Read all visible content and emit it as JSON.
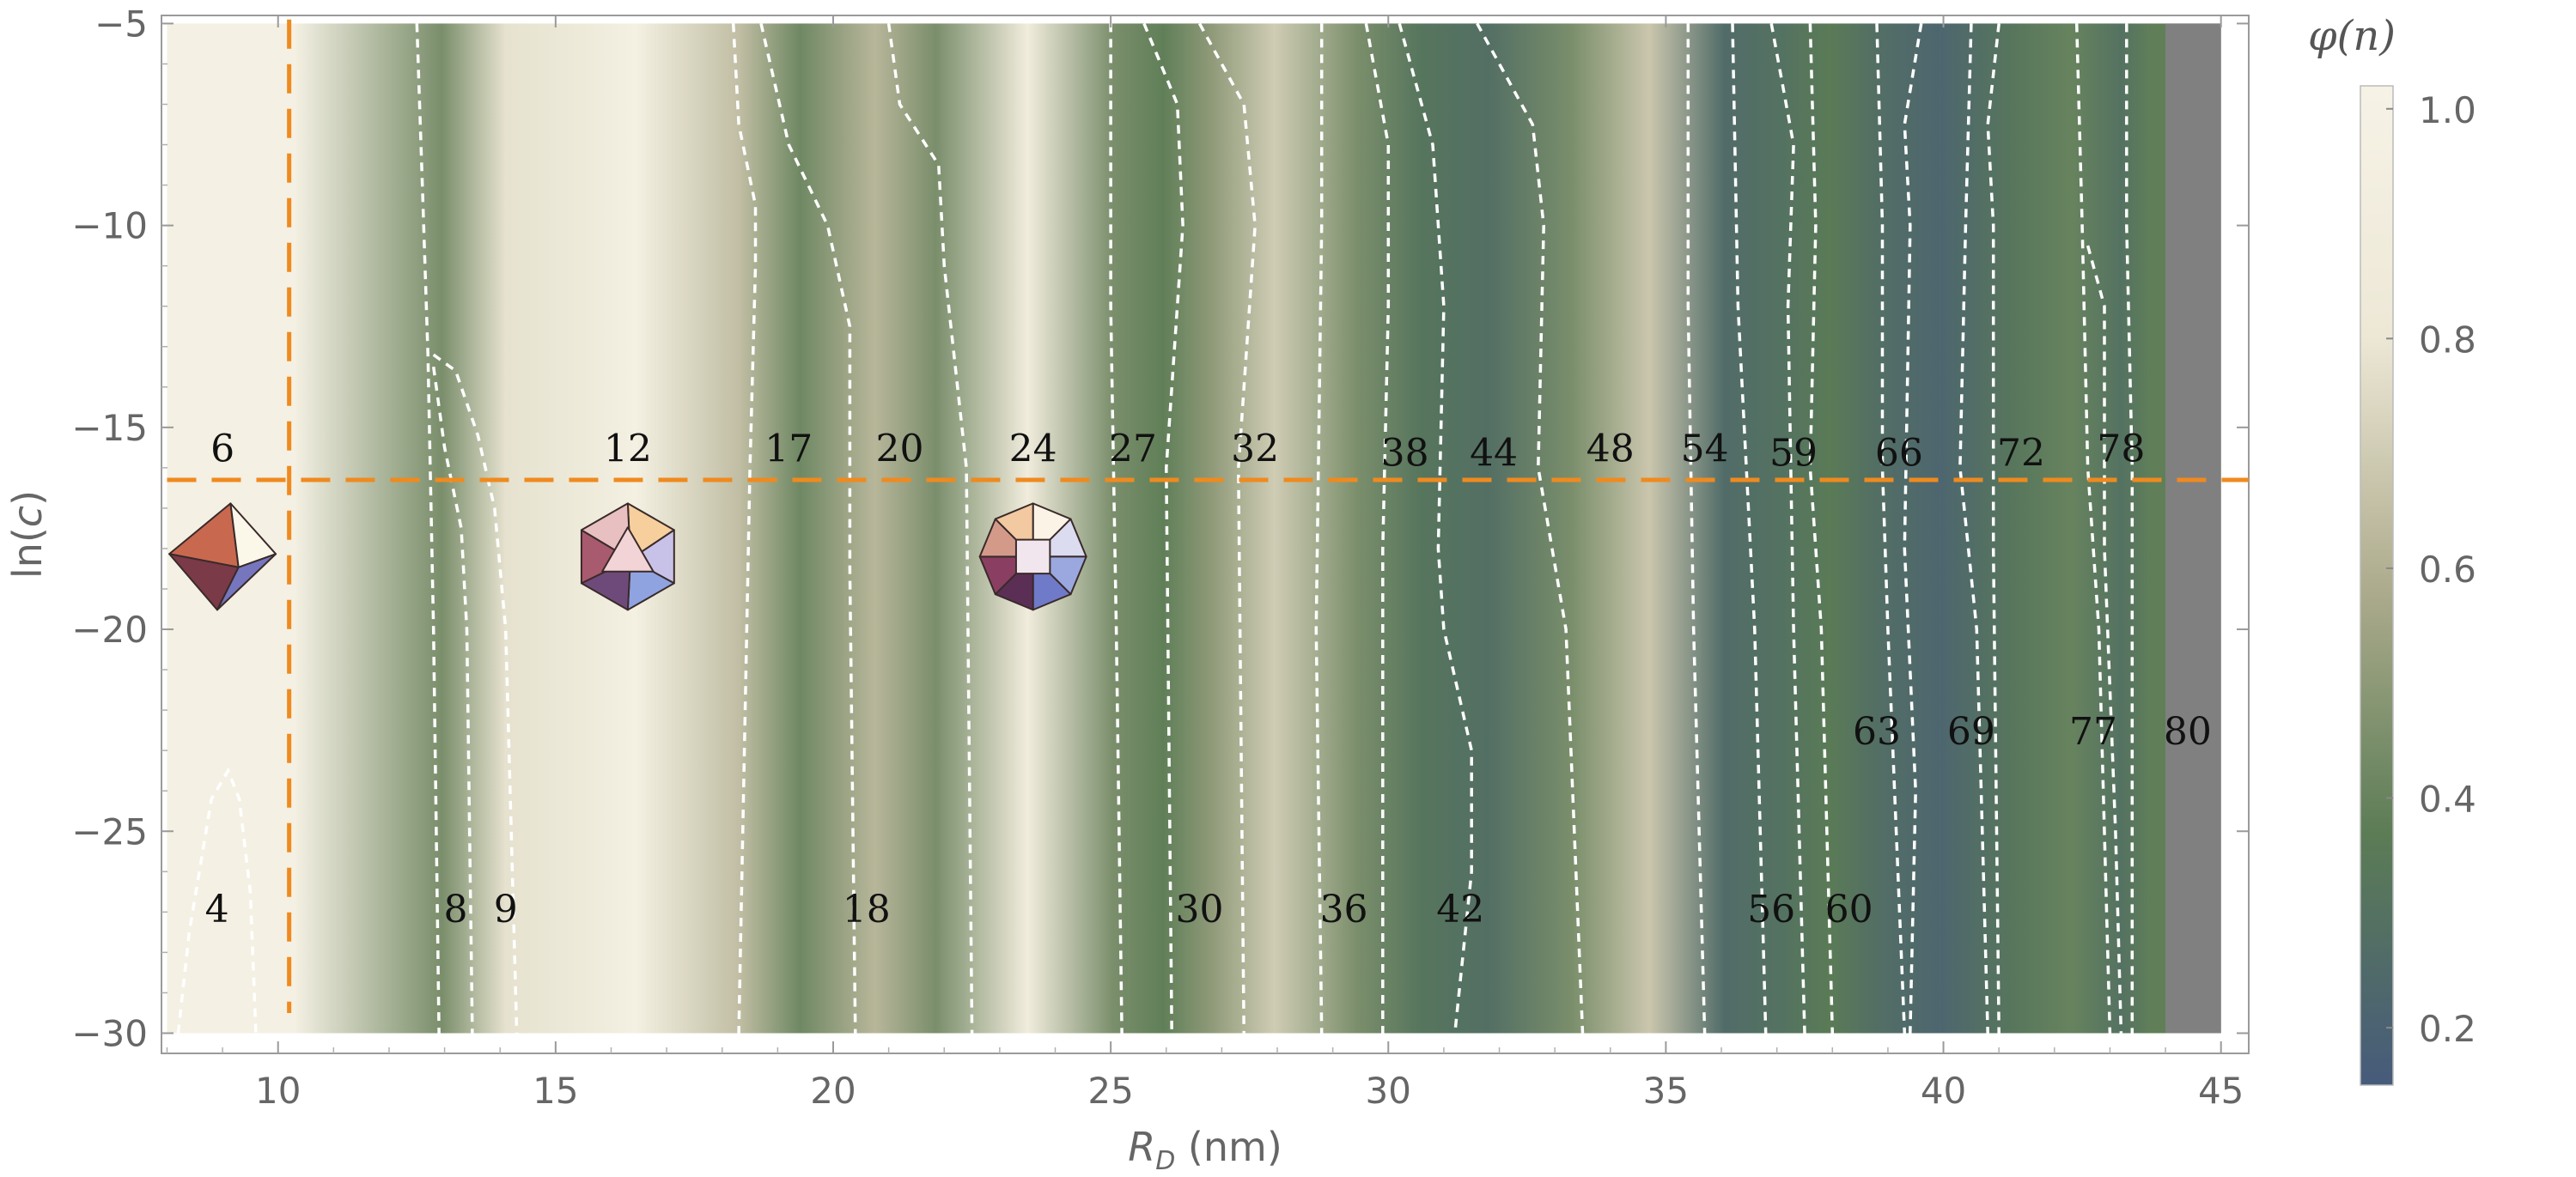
{
  "chart_data": {
    "type": "heatmap",
    "title": "",
    "xlabel": "R_D (nm)",
    "ylabel": "ln(c)",
    "xlim": [
      7.9,
      45.5
    ],
    "ylim": [
      -30.5,
      -4.8
    ],
    "x_ticks": [
      10,
      15,
      20,
      25,
      30,
      35,
      40,
      45
    ],
    "y_ticks": [
      -5,
      -10,
      -15,
      -20,
      -25,
      -30
    ],
    "colorbar": {
      "title": "φ(n)",
      "range": [
        0.15,
        1.02
      ],
      "ticks": [
        1.0,
        0.8,
        0.6,
        0.4,
        0.2
      ],
      "colors": [
        "#465b7b",
        "#5b7c55",
        "#aeac8e",
        "#ede8d6",
        "#f6f2e6"
      ]
    },
    "colors": {
      "reference_lines": "#ef8a1f",
      "contours": "#ffffff",
      "no_data": "#808080"
    },
    "reference_lines": {
      "vertical_x": 10.2,
      "horizontal_y": -16.3
    },
    "bands": [
      {
        "x0": 8.0,
        "x1": 12.6,
        "phi": 0.98
      },
      {
        "x0": 12.6,
        "x1": 13.3,
        "phi": 0.45
      },
      {
        "x0": 13.3,
        "x1": 14.9,
        "phi": 0.78
      },
      {
        "x0": 14.9,
        "x1": 18.0,
        "phi": 0.97
      },
      {
        "x0": 18.0,
        "x1": 18.6,
        "phi": 0.65
      },
      {
        "x0": 18.6,
        "x1": 20.2,
        "phi": 0.42
      },
      {
        "x0": 20.2,
        "x1": 21.3,
        "phi": 0.62
      },
      {
        "x0": 21.3,
        "x1": 22.4,
        "phi": 0.45
      },
      {
        "x0": 22.4,
        "x1": 24.6,
        "phi": 0.9
      },
      {
        "x0": 24.6,
        "x1": 25.5,
        "phi": 0.45
      },
      {
        "x0": 25.5,
        "x1": 26.4,
        "phi": 0.38
      },
      {
        "x0": 26.4,
        "x1": 27.2,
        "phi": 0.5
      },
      {
        "x0": 27.2,
        "x1": 28.7,
        "phi": 0.7
      },
      {
        "x0": 28.7,
        "x1": 30.2,
        "phi": 0.45
      },
      {
        "x0": 30.2,
        "x1": 31.0,
        "phi": 0.32
      },
      {
        "x0": 31.0,
        "x1": 32.6,
        "phi": 0.28
      },
      {
        "x0": 32.6,
        "x1": 34.0,
        "phi": 0.45
      },
      {
        "x0": 34.0,
        "x1": 35.4,
        "phi": 0.68
      },
      {
        "x0": 35.4,
        "x1": 36.7,
        "phi": 0.26
      },
      {
        "x0": 36.7,
        "x1": 37.5,
        "phi": 0.3
      },
      {
        "x0": 37.5,
        "x1": 38.4,
        "phi": 0.36
      },
      {
        "x0": 38.4,
        "x1": 39.1,
        "phi": 0.28
      },
      {
        "x0": 39.1,
        "x1": 40.8,
        "phi": 0.22
      },
      {
        "x0": 40.8,
        "x1": 41.7,
        "phi": 0.33
      },
      {
        "x0": 41.7,
        "x1": 42.9,
        "phi": 0.4
      },
      {
        "x0": 42.9,
        "x1": 43.5,
        "phi": 0.3
      },
      {
        "x0": 43.5,
        "x1": 44.0,
        "phi": 0.38
      },
      {
        "x0": 44.0,
        "x1": 45.0,
        "phi": null
      }
    ],
    "contours": [
      {
        "points": [
          [
            8.2,
            -30
          ],
          [
            8.4,
            -27.5
          ],
          [
            8.8,
            -24.2
          ],
          [
            9.1,
            -23.5
          ],
          [
            9.3,
            -24.2
          ],
          [
            9.5,
            -26.5
          ],
          [
            9.6,
            -30
          ]
        ]
      },
      {
        "points": [
          [
            12.5,
            -5.0
          ],
          [
            12.6,
            -9.0
          ],
          [
            12.7,
            -13.2
          ],
          [
            12.8,
            -20.0
          ],
          [
            12.9,
            -30.0
          ]
        ]
      },
      {
        "points": [
          [
            12.8,
            -13.2
          ],
          [
            13.2,
            -13.6
          ],
          [
            13.6,
            -15.2
          ],
          [
            13.9,
            -17.0
          ],
          [
            14.1,
            -20.0
          ],
          [
            14.2,
            -25.0
          ],
          [
            14.3,
            -30.0
          ]
        ]
      },
      {
        "points": [
          [
            12.8,
            -13.5
          ],
          [
            13.0,
            -15.5
          ],
          [
            13.3,
            -17.5
          ],
          [
            13.4,
            -20.0
          ],
          [
            13.5,
            -30.0
          ]
        ]
      },
      {
        "points": [
          [
            18.2,
            -5.0
          ],
          [
            18.3,
            -7.5
          ],
          [
            18.6,
            -9.5
          ],
          [
            18.6,
            -11.0
          ],
          [
            18.5,
            -16.0
          ],
          [
            18.3,
            -30.0
          ]
        ]
      },
      {
        "points": [
          [
            18.7,
            -5.0
          ],
          [
            19.2,
            -8.0
          ],
          [
            19.9,
            -10.0
          ],
          [
            20.3,
            -12.5
          ],
          [
            20.3,
            -18.5
          ],
          [
            20.4,
            -30.0
          ]
        ]
      },
      {
        "points": [
          [
            21.0,
            -5.0
          ],
          [
            21.2,
            -7.0
          ],
          [
            21.9,
            -8.5
          ],
          [
            22.0,
            -11.0
          ],
          [
            22.4,
            -16.0
          ],
          [
            22.5,
            -30.0
          ]
        ]
      },
      {
        "points": [
          [
            25.0,
            -5.0
          ],
          [
            25.0,
            -12.0
          ],
          [
            25.1,
            -20.0
          ],
          [
            25.2,
            -30.0
          ]
        ]
      },
      {
        "points": [
          [
            25.6,
            -5.0
          ],
          [
            26.2,
            -7.0
          ],
          [
            26.3,
            -10.0
          ],
          [
            26.0,
            -16.0
          ],
          [
            26.1,
            -30.0
          ]
        ]
      },
      {
        "points": [
          [
            26.6,
            -5.0
          ],
          [
            27.4,
            -7.0
          ],
          [
            27.6,
            -10.0
          ],
          [
            27.3,
            -16.0
          ],
          [
            27.4,
            -30.0
          ]
        ]
      },
      {
        "points": [
          [
            28.8,
            -5.0
          ],
          [
            28.8,
            -10.0
          ],
          [
            28.7,
            -20.0
          ],
          [
            28.8,
            -30.0
          ]
        ]
      },
      {
        "points": [
          [
            29.6,
            -5.0
          ],
          [
            30.0,
            -8.0
          ],
          [
            30.0,
            -12.0
          ],
          [
            29.9,
            -18.0
          ],
          [
            29.9,
            -30.0
          ]
        ]
      },
      {
        "points": [
          [
            30.2,
            -5.0
          ],
          [
            30.8,
            -8.0
          ],
          [
            31.0,
            -12.0
          ],
          [
            30.9,
            -18.0
          ],
          [
            31.0,
            -20.0
          ],
          [
            31.5,
            -23.0
          ],
          [
            31.5,
            -26.0
          ],
          [
            31.2,
            -30.0
          ]
        ]
      },
      {
        "points": [
          [
            31.6,
            -5.0
          ],
          [
            32.6,
            -7.5
          ],
          [
            32.8,
            -10.0
          ],
          [
            32.7,
            -16.0
          ],
          [
            33.2,
            -20.0
          ],
          [
            33.5,
            -30.0
          ]
        ]
      },
      {
        "points": [
          [
            35.4,
            -5.0
          ],
          [
            35.4,
            -12.0
          ],
          [
            35.5,
            -20.0
          ],
          [
            35.7,
            -30.0
          ]
        ]
      },
      {
        "points": [
          [
            36.2,
            -5.0
          ],
          [
            36.3,
            -12.0
          ],
          [
            36.6,
            -20.0
          ],
          [
            36.8,
            -30.0
          ]
        ]
      },
      {
        "points": [
          [
            36.9,
            -5.0
          ],
          [
            37.3,
            -8.0
          ],
          [
            37.2,
            -12.0
          ],
          [
            37.3,
            -20.0
          ],
          [
            37.5,
            -30.0
          ]
        ]
      },
      {
        "points": [
          [
            37.6,
            -5.0
          ],
          [
            37.7,
            -10.0
          ],
          [
            37.6,
            -16.0
          ],
          [
            37.8,
            -20.0
          ],
          [
            38.0,
            -30.0
          ]
        ]
      },
      {
        "points": [
          [
            38.8,
            -5.0
          ],
          [
            38.9,
            -10.0
          ],
          [
            38.9,
            -16.0
          ],
          [
            39.0,
            -20.0
          ],
          [
            39.3,
            -30.0
          ]
        ]
      },
      {
        "points": [
          [
            39.6,
            -5.0
          ],
          [
            39.3,
            -7.5
          ],
          [
            39.4,
            -10.0
          ],
          [
            39.3,
            -18.0
          ],
          [
            39.5,
            -24.0
          ],
          [
            39.4,
            -30.0
          ]
        ]
      },
      {
        "points": [
          [
            40.5,
            -5.0
          ],
          [
            40.4,
            -10.0
          ],
          [
            40.3,
            -16.0
          ],
          [
            40.6,
            -20.0
          ],
          [
            40.7,
            -25.0
          ],
          [
            40.8,
            -30.0
          ]
        ]
      },
      {
        "points": [
          [
            41.0,
            -5.0
          ],
          [
            40.8,
            -7.5
          ],
          [
            40.9,
            -10.0
          ],
          [
            40.9,
            -18.0
          ],
          [
            41.0,
            -30.0
          ]
        ]
      },
      {
        "points": [
          [
            42.4,
            -5.0
          ],
          [
            42.5,
            -10.0
          ],
          [
            42.6,
            -16.0
          ],
          [
            42.8,
            -20.0
          ],
          [
            43.0,
            -30.0
          ]
        ]
      },
      {
        "points": [
          [
            43.3,
            -5.0
          ],
          [
            43.3,
            -10.0
          ],
          [
            43.4,
            -16.0
          ],
          [
            43.4,
            -30.0
          ]
        ]
      },
      {
        "points": [
          [
            42.6,
            -10.5
          ],
          [
            42.9,
            -12.0
          ],
          [
            42.9,
            -18.0
          ],
          [
            43.1,
            -25.0
          ],
          [
            43.2,
            -30.0
          ]
        ]
      }
    ],
    "annotations": [
      {
        "text": "6",
        "x": 9.0,
        "y": -15.6
      },
      {
        "text": "12",
        "x": 16.3,
        "y": -15.6
      },
      {
        "text": "17",
        "x": 19.2,
        "y": -15.6
      },
      {
        "text": "20",
        "x": 21.2,
        "y": -15.6
      },
      {
        "text": "24",
        "x": 23.6,
        "y": -15.6
      },
      {
        "text": "27",
        "x": 25.4,
        "y": -15.6
      },
      {
        "text": "32",
        "x": 27.6,
        "y": -15.6
      },
      {
        "text": "38",
        "x": 30.3,
        "y": -15.7
      },
      {
        "text": "44",
        "x": 31.9,
        "y": -15.7
      },
      {
        "text": "48",
        "x": 34.0,
        "y": -15.6
      },
      {
        "text": "54",
        "x": 35.7,
        "y": -15.6
      },
      {
        "text": "59",
        "x": 37.3,
        "y": -15.7
      },
      {
        "text": "66",
        "x": 39.2,
        "y": -15.7
      },
      {
        "text": "72",
        "x": 41.4,
        "y": -15.7
      },
      {
        "text": "78",
        "x": 43.2,
        "y": -15.6
      },
      {
        "text": "63",
        "x": 38.8,
        "y": -22.6
      },
      {
        "text": "69",
        "x": 40.5,
        "y": -22.6
      },
      {
        "text": "77",
        "x": 42.7,
        "y": -22.6
      },
      {
        "text": "80",
        "x": 44.4,
        "y": -22.6
      },
      {
        "text": "4",
        "x": 8.9,
        "y": -27.0
      },
      {
        "text": "8",
        "x": 13.2,
        "y": -27.0
      },
      {
        "text": "9",
        "x": 14.1,
        "y": -27.0
      },
      {
        "text": "18",
        "x": 20.6,
        "y": -27.0
      },
      {
        "text": "30",
        "x": 26.6,
        "y": -27.0
      },
      {
        "text": "36",
        "x": 29.2,
        "y": -27.0
      },
      {
        "text": "42",
        "x": 31.3,
        "y": -27.0
      },
      {
        "text": "56",
        "x": 36.9,
        "y": -27.0
      },
      {
        "text": "60",
        "x": 38.3,
        "y": -27.0
      }
    ],
    "insets": [
      {
        "shape": "octahedron",
        "x": 9.0,
        "y": -18.2
      },
      {
        "shape": "icosahedron",
        "x": 16.3,
        "y": -18.2
      },
      {
        "shape": "snub-cube",
        "x": 23.6,
        "y": -18.2
      }
    ]
  }
}
